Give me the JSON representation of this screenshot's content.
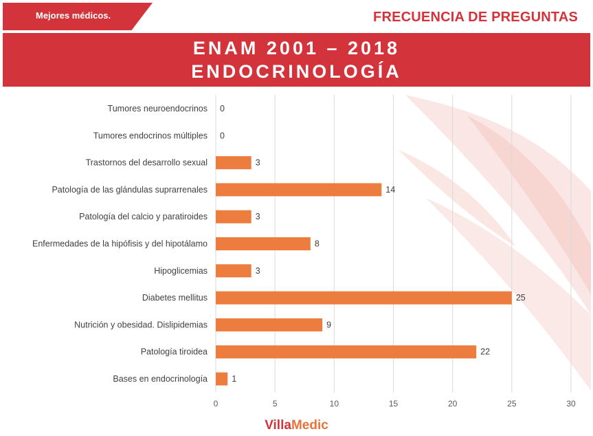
{
  "header": {
    "tagline": "Mejores médicos.",
    "section_title": "FRECUENCIA DE PREGUNTAS"
  },
  "banner": {
    "line1": "ENAM 2001 – 2018",
    "line2": "ENDOCRINOLOGÍA"
  },
  "logo": {
    "part1": "Villa",
    "part2": "Medic"
  },
  "colors": {
    "brand_red": "#d3333a",
    "bar_orange": "#ed7d3f",
    "grid": "#d9d9d9"
  },
  "chart_data": {
    "type": "bar",
    "orientation": "horizontal",
    "categories": [
      "Tumores neuroendocrinos",
      "Tumores endocrinos múltiples",
      "Trastornos del desarrollo sexual",
      "Patología de las glándulas suprarrenales",
      "Patología del calcio y paratiroides",
      "Enfermedades de la hipófisis y del hipotálamo",
      "Hipoglicemias",
      "Diabetes mellitus",
      "Nutrición y obesidad. Dislipidemias",
      "Patología tiroidea",
      "Bases en endocrinología"
    ],
    "values": [
      0,
      0,
      3,
      14,
      3,
      8,
      3,
      25,
      9,
      22,
      1
    ],
    "xlim": [
      0,
      30
    ],
    "xticks": [
      0,
      5,
      10,
      15,
      20,
      25,
      30
    ],
    "grid": true,
    "data_labels": true
  }
}
